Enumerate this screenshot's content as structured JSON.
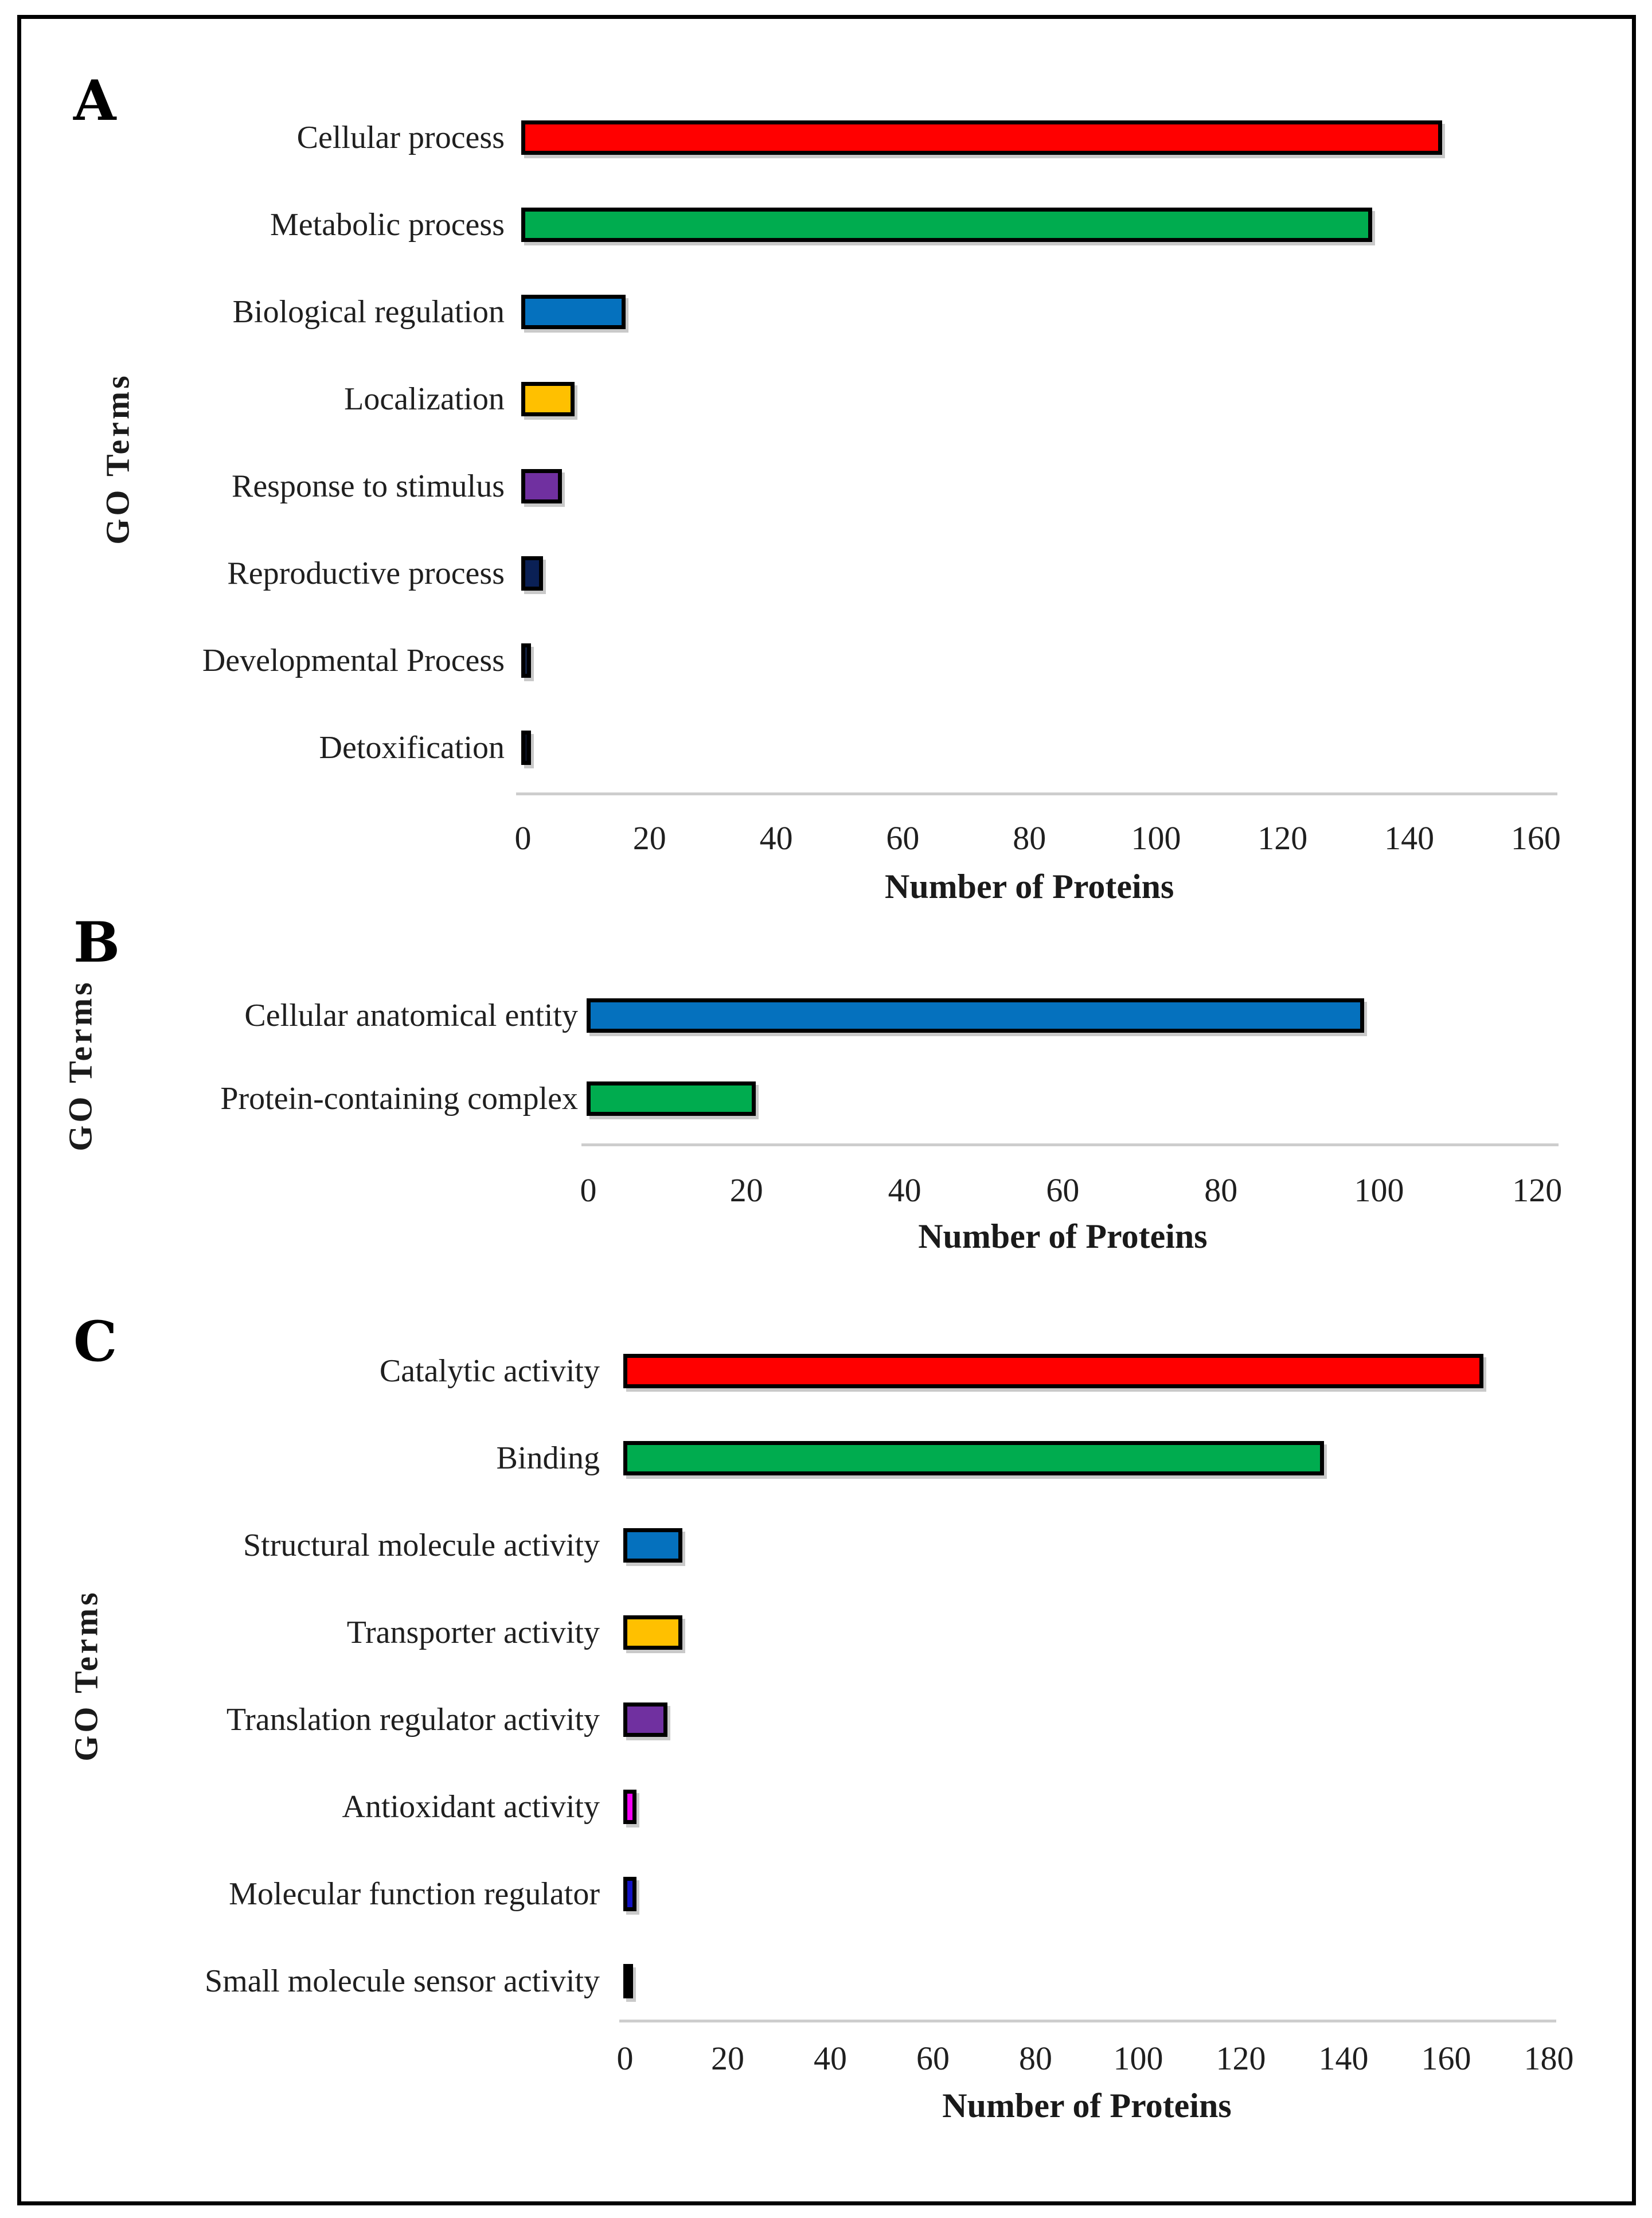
{
  "figure": {
    "background_color": "#FFFFFF",
    "frame_color": "#000000",
    "axis_line_color": "#CDCDCD",
    "bar_border_color": "#000000",
    "bar_shadow_color": "#C9C9C9",
    "text_color": "#1F1F1F"
  },
  "chart_data": [
    {
      "type": "bar",
      "orientation": "horizontal",
      "panel": "A",
      "xlabel": "Number of Proteins",
      "ylabel": "GO Terms",
      "xlim": [
        0,
        160
      ],
      "xtick_step": 20,
      "xticks": [
        0,
        20,
        40,
        60,
        80,
        100,
        120,
        140,
        160
      ],
      "grid": false,
      "legend": "none",
      "categories": [
        "Cellular process",
        "Metabolic process",
        "Biological regulation",
        "Localization",
        "Response to stimulus",
        "Reproductive process",
        "Developmental Process",
        "Detoxification"
      ],
      "values": [
        145,
        134,
        16,
        8,
        6,
        3,
        1,
        1
      ],
      "bar_colors": [
        "#FF0000",
        "#00AC4F",
        "#0571BE",
        "#FFC000",
        "#7030A0",
        "#0A2055",
        "#12203F",
        "#0B1020"
      ]
    },
    {
      "type": "bar",
      "orientation": "horizontal",
      "panel": "B",
      "xlabel": "Number of Proteins",
      "ylabel": "GO Terms",
      "xlim": [
        0,
        120
      ],
      "xtick_step": 20,
      "xticks": [
        0,
        20,
        40,
        60,
        80,
        100,
        120
      ],
      "grid": false,
      "legend": "none",
      "categories": [
        "Cellular anatomical entity",
        "Protein-containing complex"
      ],
      "values": [
        98,
        21
      ],
      "bar_colors": [
        "#0571BE",
        "#00AC4F"
      ]
    },
    {
      "type": "bar",
      "orientation": "horizontal",
      "panel": "C",
      "xlabel": "Number of Proteins",
      "ylabel": "GO Terms",
      "xlim": [
        0,
        180
      ],
      "xtick_step": 20,
      "xticks": [
        0,
        20,
        40,
        60,
        80,
        100,
        120,
        140,
        160,
        180
      ],
      "grid": false,
      "legend": "none",
      "categories": [
        "Catalytic activity",
        "Binding",
        "Structural molecule activity",
        "Transporter activity",
        "Translation regulator activity",
        "Antioxidant activity",
        "Molecular function regulator",
        "Small molecule sensor activity"
      ],
      "values": [
        167,
        136,
        11,
        11,
        8,
        2,
        2,
        1
      ],
      "bar_colors": [
        "#FF0000",
        "#00AC4F",
        "#0571BE",
        "#FFC000",
        "#7030A0",
        "#F400F4",
        "#1212C4",
        "#000000"
      ]
    }
  ]
}
